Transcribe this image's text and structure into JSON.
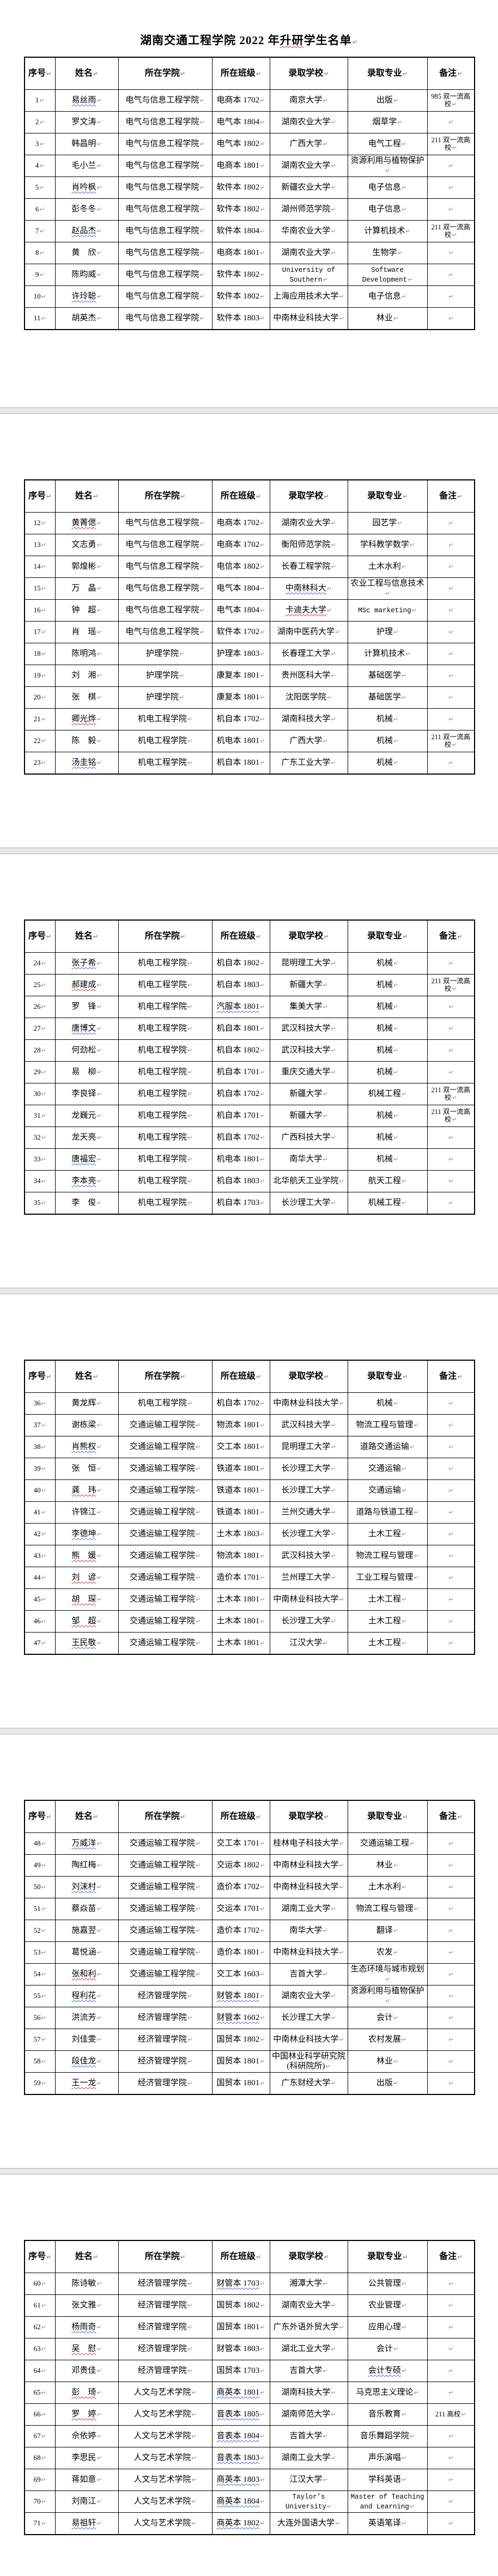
{
  "document": {
    "kind": "word-processor-roster-document",
    "pages_count": 6
  },
  "title": {
    "prefix": "湖南交通工程学院 2022 年",
    "highlight": "升研",
    "suffix": "学生名单"
  },
  "table": {
    "columns": [
      "序号",
      "姓名",
      "所在学院",
      "所在班级",
      "录取学校",
      "录取专业",
      "备注"
    ]
  },
  "colors": {
    "text": "#000000",
    "page_bg": "#ffffff",
    "separator_bg": "#e8e8e8",
    "wavy_red": "#e03030",
    "wavy_blue": "#3a6fd8",
    "paragraph_mark": "#8f8f8f"
  },
  "marks": {
    "paragraph_mark": "↵"
  },
  "pages": [
    {
      "title": true,
      "row_start": 0,
      "row_end": 11
    },
    {
      "title": false,
      "row_start": 11,
      "row_end": 23
    },
    {
      "title": false,
      "row_start": 23,
      "row_end": 35
    },
    {
      "title": false,
      "row_start": 35,
      "row_end": 47
    },
    {
      "title": false,
      "row_start": 47,
      "row_end": 59
    },
    {
      "title": false,
      "row_start": 59,
      "row_end": 71
    }
  ],
  "rows": [
    {
      "no": "1",
      "name": "易丝雨",
      "name_wavy": "blue",
      "college": "电气与信息工程学院",
      "class": "电商本 1702",
      "school": "南京大学",
      "major": "出版",
      "remark": "985 双一流高校"
    },
    {
      "no": "2",
      "name": "罗文涛",
      "college": "电气与信息工程学院",
      "class": "电气本 1804",
      "school": "湖南农业大学",
      "major": "烟草学",
      "remark": ""
    },
    {
      "no": "3",
      "name": "韩昌明",
      "college": "电气与信息工程学院",
      "class": "电气本 1802",
      "school": "广西大学",
      "major": "电气工程",
      "remark": "211 双一流高校"
    },
    {
      "no": "4",
      "name": "毛小兰",
      "college": "电气与信息工程学院",
      "class": "电商本 1801",
      "school": "湖南农业大学",
      "major": "资源利用与植物保护",
      "remark": ""
    },
    {
      "no": "5",
      "name": "肖吟枫",
      "name_wavy": "blue",
      "college": "电气与信息工程学院",
      "class": "软件本 1802",
      "school": "新疆农业大学",
      "major": "电子信息",
      "remark": ""
    },
    {
      "no": "6",
      "name": "彭冬冬",
      "college": "电气与信息工程学院",
      "class": "软件本 1802",
      "school": "湖州师范学院",
      "major": "电子信息",
      "remark": ""
    },
    {
      "no": "7",
      "name": "赵品杰",
      "name_wavy": "blue",
      "college": "电气与信息工程学院",
      "class": "软件本 1804",
      "school": "华南农业大学",
      "major": "计算机技术",
      "remark": "211 双一流高校"
    },
    {
      "no": "8",
      "name": "黄　欣",
      "college": "电气与信息工程学院",
      "class": "电商本 1801",
      "school": "湖南农业大学",
      "major": "生物学",
      "remark": ""
    },
    {
      "no": "9",
      "name": "陈昀威",
      "college": "电气与信息工程学院",
      "class": "软件本 1802",
      "school": "University of Southern",
      "major": "Software Development",
      "remark": ""
    },
    {
      "no": "10",
      "name": "许玲聪",
      "name_wavy": "blue",
      "college": "电气与信息工程学院",
      "class": "软件本 1802",
      "school": "上海应用技术大学",
      "major": "电子信息",
      "remark": ""
    },
    {
      "no": "11",
      "name": "胡英杰",
      "college": "电气与信息工程学院",
      "class": "软件本 1803",
      "school": "中南林业科技大学",
      "major": "林业",
      "remark": ""
    },
    {
      "no": "12",
      "name": "黄菁偲",
      "name_wavy": "red",
      "college": "电气与信息工程学院",
      "class": "电商本 1702",
      "school": "湖南农业大学",
      "major": "园艺学",
      "remark": ""
    },
    {
      "no": "13",
      "name": "文志勇",
      "college": "电气与信息工程学院",
      "class": "电商本 1702",
      "school": "衡阳师范学院",
      "major": "学科教学数学",
      "remark": ""
    },
    {
      "no": "14",
      "name": "郭煌彬",
      "college": "电气与信息工程学院",
      "class": "电信本 1802",
      "school": "长春工程学院",
      "major": "土木水利",
      "remark": ""
    },
    {
      "no": "15",
      "name": "万　晶",
      "college": "电气与信息工程学院",
      "class": "电气本 1804",
      "school": "中南林科大",
      "school_wavy": "blue",
      "major": "农业工程与信息技术",
      "remark": ""
    },
    {
      "no": "16",
      "name": "钟　超",
      "college": "电气与信息工程学院",
      "class": "电气本 1804",
      "school": "卡迪夫大学",
      "school_wavy": "red",
      "major": "MSc marketing",
      "remark": ""
    },
    {
      "no": "17",
      "name": "肖　瑶",
      "college": "电气与信息工程学院",
      "class": "软件本 1702",
      "school": "湖南中医药大学",
      "major": "护理",
      "remark": ""
    },
    {
      "no": "18",
      "name": "陈明鸿",
      "college": "护理学院",
      "class": "护理本 1803",
      "school": "长春理工大学",
      "major": "计算机技术",
      "remark": ""
    },
    {
      "no": "19",
      "name": "刘　湘",
      "college": "护理学院",
      "class": "康复本 1801",
      "school": "贵州医科大学",
      "major": "基础医学",
      "remark": ""
    },
    {
      "no": "20",
      "name": "张　棋",
      "college": "护理学院",
      "class": "康复本 1801",
      "school": "沈阳医学院",
      "major": "基础医学",
      "remark": ""
    },
    {
      "no": "21",
      "name": "卿光烨",
      "name_wavy": "red",
      "college": "机电工程学院",
      "class": "机自本 1702",
      "school": "湖南科技大学",
      "major": "机械",
      "remark": ""
    },
    {
      "no": "22",
      "name": "陈　毅",
      "college": "机电工程学院",
      "class": "机电本 1801",
      "school": "广西大学",
      "major": "机械",
      "remark": "211 双一流高校"
    },
    {
      "no": "23",
      "name": "汤圭铭",
      "name_wavy": "blue",
      "college": "机电工程学院",
      "class": "机自本 1801",
      "school": "广东工业大学",
      "major": "机械",
      "remark": ""
    },
    {
      "no": "24",
      "name": "张子希",
      "name_wavy": "blue",
      "college": "机电工程学院",
      "class": "机自本 1802",
      "school": "昆明理工大学",
      "major": "机械",
      "remark": ""
    },
    {
      "no": "25",
      "name": "郝建成",
      "name_wavy": "red",
      "college": "机电工程学院",
      "class": "机自本 1803",
      "school": "新疆大学",
      "major": "机械",
      "remark": "211 双一流高校"
    },
    {
      "no": "26",
      "name": "罗　锋",
      "college": "机电工程学院",
      "class": "汽服本 1801",
      "class_wavy": "blue",
      "school": "集美大学",
      "major": "机械",
      "remark": ""
    },
    {
      "no": "27",
      "name": "唐博文",
      "name_wavy": "blue",
      "college": "机电工程学院",
      "class": "机自本 1801",
      "school": "武汉科技大学",
      "major": "机械",
      "remark": ""
    },
    {
      "no": "28",
      "name": "何劲松",
      "college": "机电工程学院",
      "class": "机自本 1802",
      "school": "武汉科技大学",
      "major": "机械",
      "remark": ""
    },
    {
      "no": "29",
      "name": "易　柳",
      "college": "机电工程学院",
      "class": "机自本 1701",
      "school": "重庆交通大学",
      "major": "机械",
      "remark": ""
    },
    {
      "no": "30",
      "name": "李良铎",
      "college": "机电工程学院",
      "class": "机自本 1702",
      "school": "新疆大学",
      "major": "机械工程",
      "remark": "211 双一流高校"
    },
    {
      "no": "31",
      "name": "龙巍元",
      "college": "机电工程学院",
      "class": "机自本 1701",
      "school": "新疆大学",
      "major": "机械",
      "remark": "211 双一流高校"
    },
    {
      "no": "32",
      "name": "龙天亮",
      "college": "机电工程学院",
      "class": "机自本 1702",
      "school": "广西科技大学",
      "major": "机械",
      "remark": ""
    },
    {
      "no": "33",
      "name": "唐福宏",
      "name_wavy": "blue",
      "college": "机电工程学院",
      "class": "机电本 1801",
      "school": "南华大学",
      "major": "机械",
      "remark": ""
    },
    {
      "no": "34",
      "name": "李本亮",
      "name_wavy": "blue",
      "college": "机电工程学院",
      "class": "机自本 1803",
      "school": "北华航天工业学院",
      "major": "航天工程",
      "remark": ""
    },
    {
      "no": "35",
      "name": "李　俊",
      "college": "机电工程学院",
      "class": "机自本 1703",
      "school": "长沙理工大学",
      "major": "机械工程",
      "remark": ""
    },
    {
      "no": "36",
      "name": "黄龙辉",
      "college": "机电工程学院",
      "class": "机自本 1702",
      "school": "中南林业科技大学",
      "major": "机械",
      "remark": ""
    },
    {
      "no": "37",
      "name": "谢栋梁",
      "college": "交通运输工程学院",
      "class": "物流本 1801",
      "school": "武汉科技大学",
      "major": "物流工程与管理",
      "remark": ""
    },
    {
      "no": "38",
      "name": "肖熊权",
      "name_wavy": "blue",
      "college": "交通运输工程学院",
      "class": "交工本 1801",
      "school": "昆明理工大学",
      "major": "道路交通运输",
      "remark": ""
    },
    {
      "no": "39",
      "name": "张　恒",
      "college": "交通运输工程学院",
      "class": "铁道本 1801",
      "school": "长沙理工大学",
      "major": "交通运输",
      "remark": ""
    },
    {
      "no": "40",
      "name": "龚　玮",
      "name_wavy": "red",
      "college": "交通运输工程学院",
      "class": "铁道本 1801",
      "school": "长沙理工大学",
      "major": "交通运输",
      "remark": ""
    },
    {
      "no": "41",
      "name": "许锦江",
      "college": "交通运输工程学院",
      "class": "铁道本 1801",
      "school": "兰州交通大学",
      "major": "道路与铁道工程",
      "remark": ""
    },
    {
      "no": "42",
      "name": "李德坤",
      "name_wavy": "blue",
      "college": "交通运输工程学院",
      "class": "土木本 1803",
      "school": "长沙理工大学",
      "major": "土木工程",
      "remark": ""
    },
    {
      "no": "43",
      "name": "熊　媛",
      "name_wavy": "red",
      "college": "交通运输工程学院",
      "class": "物流本 1801",
      "school": "武汉科技大学",
      "major": "物流工程与管理",
      "remark": ""
    },
    {
      "no": "44",
      "name": "刘　谚",
      "name_wavy": "red",
      "college": "交通运输工程学院",
      "class": "造价本 1701",
      "school": "兰州理工大学",
      "major": "工业工程与管理",
      "remark": ""
    },
    {
      "no": "45",
      "name": "胡　琛",
      "name_wavy": "red",
      "college": "交通运输工程学院",
      "class": "土木本 1801",
      "school": "中南林业科技大学",
      "major": "土木工程",
      "remark": ""
    },
    {
      "no": "46",
      "name": "邹　超",
      "name_wavy": "red",
      "college": "交通运输工程学院",
      "class": "土木本 1801",
      "school": "长沙理工大学",
      "major": "土木工程",
      "remark": ""
    },
    {
      "no": "47",
      "name": "王民敬",
      "name_wavy": "blue",
      "college": "交通运输工程学院",
      "class": "土木本 1801",
      "school": "江汉大学",
      "major": "土木工程",
      "remark": ""
    },
    {
      "no": "48",
      "name": "万威洋",
      "name_wavy": "blue",
      "college": "交通运输工程学院",
      "class": "交工本 1701",
      "school": "桂林电子科技大学",
      "major": "交通运输工程",
      "remark": ""
    },
    {
      "no": "49",
      "name": "陶红梅",
      "college": "交通运输工程学院",
      "class": "交运本 1802",
      "school": "中南林业科技大学",
      "major": "林业",
      "remark": ""
    },
    {
      "no": "50",
      "name": "刘沫村",
      "name_wavy": "blue",
      "college": "交通运输工程学院",
      "class": "造价本 1702",
      "school": "中南林业科技大学",
      "major": "土木水利",
      "remark": ""
    },
    {
      "no": "51",
      "name": "蔡焱苗",
      "college": "交通运输工程学院",
      "class": "交运本 1701",
      "school": "湖南工业大学",
      "major": "物流工程与管理",
      "remark": ""
    },
    {
      "no": "52",
      "name": "施嘉翌",
      "college": "交通运输工程学院",
      "class": "造价本 1702",
      "school": "南华大学",
      "major": "翻译",
      "remark": ""
    },
    {
      "no": "53",
      "name": "葛悦涵",
      "college": "交通运输工程学院",
      "class": "造价本 1801",
      "school": "中南林业科技大学",
      "major": "农发",
      "remark": ""
    },
    {
      "no": "54",
      "name": "张和利",
      "name_wavy": "red",
      "college": "交通运输工程学院",
      "class": "交工本 1603",
      "school": "吉首大学",
      "major": "生态环境与城市规划",
      "remark": ""
    },
    {
      "no": "55",
      "name": "程利花",
      "name_wavy": "blue",
      "college": "经济管理学院",
      "class": "财管本 1801",
      "class_wavy": "blue",
      "school": "湖南农业大学",
      "major": "资源利用与植物保护",
      "remark": ""
    },
    {
      "no": "56",
      "name": "洪流芳",
      "college": "经济管理学院",
      "class": "财管本 1602",
      "class_wavy": "blue",
      "school": "长沙理工大学",
      "major": "会计",
      "remark": ""
    },
    {
      "no": "57",
      "name": "刘佳雯",
      "college": "经济管理学院",
      "class": "国贸本 1802",
      "school": "中南林业科技大学",
      "major": "农村发展",
      "remark": ""
    },
    {
      "no": "58",
      "name": "段佳龙",
      "name_wavy": "blue",
      "college": "经济管理学院",
      "class": "国贸本 1801",
      "school": "中国林业科学研究院(科研院所)",
      "major": "林业",
      "remark": ""
    },
    {
      "no": "59",
      "name": "王一龙",
      "name_wavy": "red",
      "college": "经济管理学院",
      "class": "国贸本 1801",
      "school": "广东财经大学",
      "major": "出版",
      "remark": ""
    },
    {
      "no": "60",
      "name": "陈诗敏",
      "college": "经济管理学院",
      "class": "财管本 1703",
      "class_wavy": "blue",
      "school": "湘潭大学",
      "major": "公共管理",
      "remark": ""
    },
    {
      "no": "61",
      "name": "张文雅",
      "college": "经济管理学院",
      "class": "国贸本 1802",
      "school": "湖南农业大学",
      "major": "农业管理",
      "remark": ""
    },
    {
      "no": "62",
      "name": "杨雨奇",
      "name_wavy": "blue",
      "college": "经济管理学院",
      "class": "国贸本 1801",
      "school": "广东外语外贸大学",
      "major": "应用心理",
      "remark": ""
    },
    {
      "no": "63",
      "name": "吴　慰",
      "name_wavy": "red",
      "college": "经济管理学院",
      "class": "财管本 1803",
      "school": "湖北工业大学",
      "major": "会计",
      "remark": ""
    },
    {
      "no": "64",
      "name": "邓贵佳",
      "college": "经济管理学院",
      "class": "国贸本 1703",
      "school": "吉首大学",
      "major": "会计专硕",
      "major_wavy": "blue",
      "remark": ""
    },
    {
      "no": "65",
      "name": "彭　琦",
      "name_wavy": "red",
      "college": "人文与艺术学院",
      "class": "商英本 1801",
      "class_wavy": "blue",
      "school": "湖南科技大学",
      "major": "马克思主义理论",
      "remark": ""
    },
    {
      "no": "66",
      "name": "罗　婷",
      "name_wavy": "red",
      "college": "人文与艺术学院",
      "class": "音表本 1805",
      "class_wavy": "blue",
      "school": "湖南师范大学",
      "major": "音乐教育",
      "remark": "211 高校"
    },
    {
      "no": "67",
      "name": "佘依婷",
      "college": "人文与艺术学院",
      "class": "音表本 1804",
      "class_wavy": "blue",
      "school": "吉首大学",
      "major": "音乐舞蹈学院",
      "remark": ""
    },
    {
      "no": "68",
      "name": "李思民",
      "college": "人文与艺术学院",
      "class": "音表本 1803",
      "class_wavy": "blue",
      "school": "湖南工业大学",
      "major": "声乐演唱",
      "remark": ""
    },
    {
      "no": "69",
      "name": "蒋如意",
      "college": "人文与艺术学院",
      "class": "商英本 1803",
      "class_wavy": "blue",
      "school": "江汉大学",
      "major": "学科英语",
      "remark": ""
    },
    {
      "no": "70",
      "name": "刘南江",
      "college": "人文与艺术学院",
      "class": "商英本 1804",
      "class_wavy": "blue",
      "school": "Taylor’s University",
      "major": "Master of Teaching and Learning",
      "remark": ""
    },
    {
      "no": "71",
      "name": "易祖轩",
      "name_wavy": "blue",
      "college": "人文与艺术学院",
      "class": "商英本 1802",
      "class_wavy": "blue",
      "school": "大连外国语大学",
      "major": "英语笔译",
      "remark": ""
    }
  ]
}
